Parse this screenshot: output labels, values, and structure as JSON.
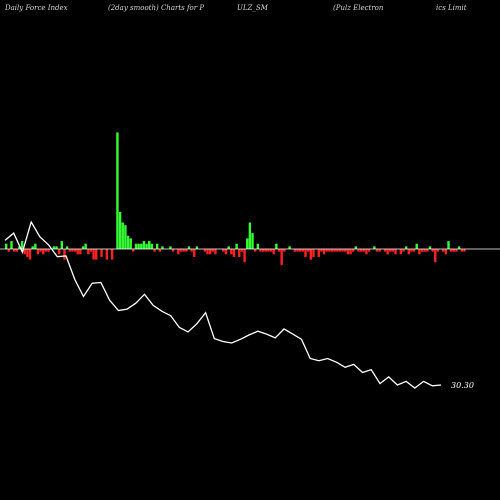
{
  "header": {
    "segments": [
      "Daily Force  Index",
      "(2day smooth) Charts for P",
      "ULZ_SM",
      "(Pulz Electron",
      "ics Limit"
    ]
  },
  "colors": {
    "background": "#000000",
    "positive": "#33ff33",
    "negative": "#ff2222",
    "baseline": "#ffffff",
    "price_line": "#ffffff"
  },
  "chart_data": {
    "type": "bar",
    "title": "Daily Force  Index (2day smooth) Charts for PULZ_SM (Pulz Electronics Limit",
    "grid": false,
    "force_index": [
      2,
      -1,
      3,
      -1,
      -1,
      1,
      3,
      -2,
      -3,
      -4,
      1,
      2,
      -2,
      -1,
      -2,
      -1,
      -1,
      0,
      1,
      1,
      -2,
      3,
      -4,
      1,
      -1,
      -1,
      -1,
      -2,
      -2,
      1,
      2,
      -2,
      -1,
      -4,
      -4,
      0,
      -3,
      0,
      -4,
      0,
      -4,
      0,
      44,
      14,
      10,
      9,
      5,
      4,
      -1,
      2,
      2,
      2,
      3,
      2,
      3,
      2,
      -1,
      2,
      -1,
      1,
      0,
      0,
      1,
      -1,
      0,
      -2,
      -1,
      -1,
      -1,
      1,
      -1,
      -3,
      1,
      0,
      0,
      -1,
      -2,
      -2,
      -1,
      -2,
      0,
      0,
      -1,
      -2,
      1,
      -2,
      -3,
      2,
      -3,
      -1,
      -5,
      4,
      10,
      6,
      -1,
      2,
      -1,
      -1,
      -1,
      -1,
      -1,
      -2,
      2,
      -1,
      -6,
      -1,
      0,
      1,
      0,
      -1,
      -1,
      -1,
      -1,
      -3,
      -1,
      -4,
      -3,
      0,
      -3,
      -1,
      -2,
      -1,
      -1,
      -1,
      -1,
      -1,
      -1,
      -1,
      -1,
      -2,
      -2,
      -1,
      1,
      -1,
      -1,
      -1,
      -2,
      -1,
      0,
      1,
      -1,
      -1,
      0,
      -1,
      -2,
      -1,
      -1,
      -2,
      0,
      -2,
      -1,
      1,
      -2,
      -1,
      -1,
      2,
      -2,
      -1,
      -1,
      -1,
      1,
      -1,
      -5,
      -1,
      0,
      -1,
      -2,
      3,
      -1,
      -1,
      -1,
      1,
      -1,
      -1,
      0,
      0,
      0,
      0,
      0,
      0,
      0,
      0,
      0,
      0,
      0
    ],
    "price": [
      49.6,
      50.6,
      48.0,
      52.1,
      50.1,
      49.0,
      47.4,
      47.5,
      44.3,
      42.0,
      43.8,
      43.9,
      41.5,
      40.1,
      40.3,
      41.1,
      42.3,
      40.8,
      40.0,
      39.4,
      37.8,
      37.2,
      38.3,
      39.8,
      36.3,
      35.9,
      35.7,
      36.2,
      36.8,
      37.3,
      36.9,
      36.4,
      37.6,
      36.9,
      36.2,
      33.6,
      33.3,
      33.6,
      33.1,
      32.4,
      32.8,
      31.7,
      32.1,
      30.2,
      31.1,
      30.0,
      30.5,
      29.6,
      30.5,
      29.9,
      30.0
    ],
    "last_price_label": "30.30"
  }
}
